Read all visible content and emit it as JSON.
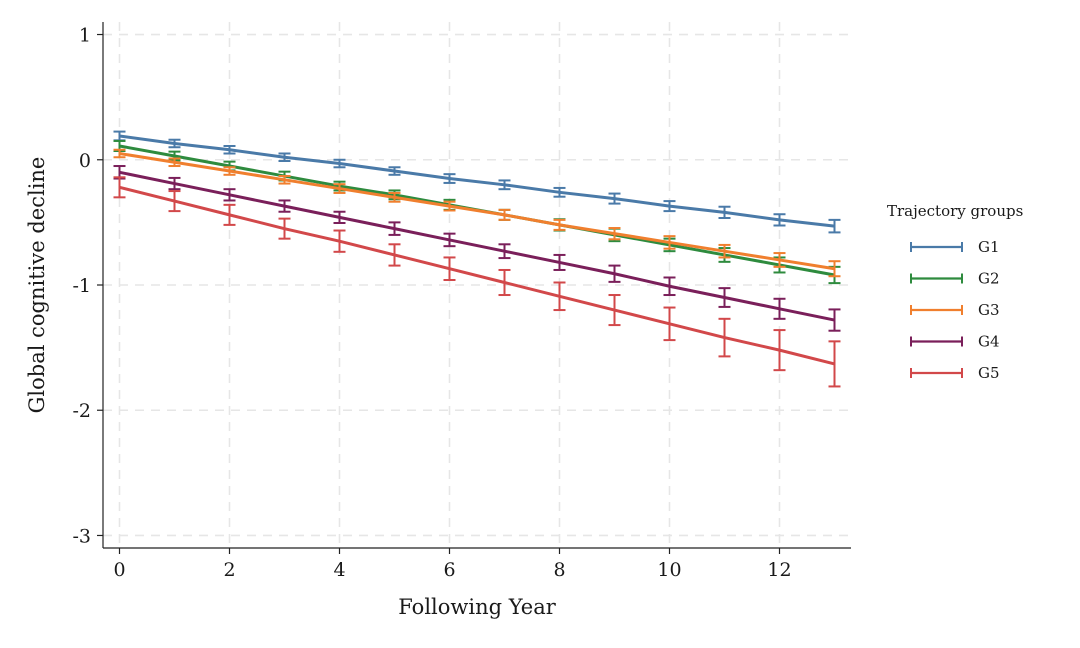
{
  "chart_data": {
    "type": "line",
    "title": "",
    "xlabel": "Following Year",
    "ylabel": "Global cognitive decline",
    "xlim": [
      -0.3,
      13.3
    ],
    "ylim": [
      -3.1,
      1.1
    ],
    "xticks": [
      0,
      2,
      4,
      6,
      8,
      10,
      12
    ],
    "xtick_labels": [
      "0",
      "2",
      "4",
      "6",
      "8",
      "10",
      "12"
    ],
    "yticks": [
      1,
      0,
      -1,
      -2,
      -3
    ],
    "ytick_labels": [
      "1",
      "0",
      "-1",
      "-2",
      "-3"
    ],
    "grid": true,
    "legend": {
      "title": "Trajectory groups",
      "placement": "right"
    },
    "x": [
      0,
      1,
      2,
      3,
      4,
      5,
      6,
      7,
      8,
      9,
      10,
      11,
      12,
      13
    ],
    "series": [
      {
        "name": "G1",
        "color": "#4a7aa8",
        "values": [
          0.19,
          0.13,
          0.08,
          0.02,
          -0.03,
          -0.09,
          -0.15,
          -0.2,
          -0.26,
          -0.31,
          -0.37,
          -0.42,
          -0.48,
          -0.53
        ],
        "error": [
          0.035,
          0.03,
          0.03,
          0.03,
          0.03,
          0.03,
          0.035,
          0.035,
          0.035,
          0.04,
          0.04,
          0.045,
          0.045,
          0.05
        ]
      },
      {
        "name": "G2",
        "color": "#2e8b3e",
        "values": [
          0.11,
          0.03,
          -0.05,
          -0.13,
          -0.21,
          -0.28,
          -0.36,
          -0.44,
          -0.52,
          -0.6,
          -0.68,
          -0.76,
          -0.84,
          -0.92
        ],
        "error": [
          0.04,
          0.035,
          0.035,
          0.035,
          0.035,
          0.035,
          0.04,
          0.04,
          0.045,
          0.05,
          0.05,
          0.055,
          0.06,
          0.065
        ]
      },
      {
        "name": "G3",
        "color": "#f07f2e",
        "values": [
          0.05,
          -0.02,
          -0.09,
          -0.16,
          -0.23,
          -0.3,
          -0.37,
          -0.44,
          -0.52,
          -0.59,
          -0.66,
          -0.73,
          -0.8,
          -0.87
        ],
        "error": [
          0.03,
          0.03,
          0.03,
          0.03,
          0.035,
          0.035,
          0.035,
          0.04,
          0.04,
          0.045,
          0.05,
          0.05,
          0.055,
          0.06
        ]
      },
      {
        "name": "G4",
        "color": "#7a1f5a",
        "values": [
          -0.1,
          -0.19,
          -0.28,
          -0.37,
          -0.46,
          -0.55,
          -0.64,
          -0.73,
          -0.82,
          -0.91,
          -1.01,
          -1.1,
          -1.19,
          -1.28
        ],
        "error": [
          0.05,
          0.045,
          0.045,
          0.045,
          0.045,
          0.05,
          0.05,
          0.055,
          0.06,
          0.065,
          0.07,
          0.075,
          0.08,
          0.085
        ]
      },
      {
        "name": "G5",
        "color": "#d2484a",
        "values": [
          -0.22,
          -0.33,
          -0.44,
          -0.55,
          -0.65,
          -0.76,
          -0.87,
          -0.98,
          -1.09,
          -1.2,
          -1.31,
          -1.42,
          -1.52,
          -1.63
        ],
        "error": [
          0.08,
          0.08,
          0.08,
          0.08,
          0.085,
          0.085,
          0.09,
          0.1,
          0.11,
          0.12,
          0.13,
          0.15,
          0.16,
          0.18
        ]
      }
    ]
  }
}
